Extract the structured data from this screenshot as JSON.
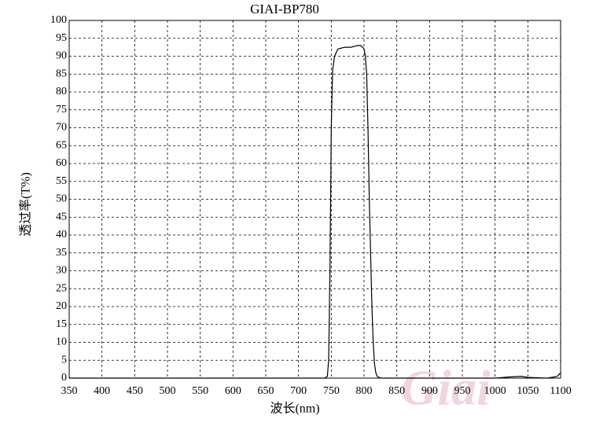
{
  "chart_data": {
    "type": "line",
    "title": "GIAI-BP780",
    "x_label": "波长(nm)",
    "y_label": "透过率(T%)",
    "watermark": "Giai",
    "color": "#000000",
    "grid": true,
    "x": [
      350,
      400,
      500,
      600,
      700,
      740,
      744,
      746,
      748,
      750,
      752,
      755,
      760,
      770,
      780,
      790,
      795,
      798,
      800,
      802,
      804,
      806,
      808,
      810,
      812,
      814,
      816,
      818,
      820,
      825,
      850,
      900,
      950,
      1000,
      1020,
      1040,
      1050,
      1080,
      1095,
      1100
    ],
    "values": [
      0,
      0,
      0,
      0,
      0,
      0,
      0.5,
      5,
      30,
      70,
      86,
      90,
      92,
      92.5,
      92.5,
      93,
      93,
      92.5,
      92,
      90,
      85,
      70,
      50,
      35,
      20,
      10,
      4,
      1.5,
      0.5,
      0,
      0,
      0,
      0,
      0,
      0.3,
      0.5,
      0.2,
      0,
      0.5,
      1.5
    ],
    "xlim": [
      350,
      1100
    ],
    "xticks": [
      350,
      400,
      450,
      500,
      550,
      600,
      650,
      700,
      750,
      800,
      850,
      900,
      950,
      1000,
      1050,
      1100
    ],
    "ylim": [
      0,
      100
    ],
    "yticks": [
      0,
      5,
      10,
      15,
      20,
      25,
      30,
      35,
      40,
      45,
      50,
      55,
      60,
      65,
      70,
      75,
      80,
      85,
      90,
      95,
      100
    ]
  }
}
